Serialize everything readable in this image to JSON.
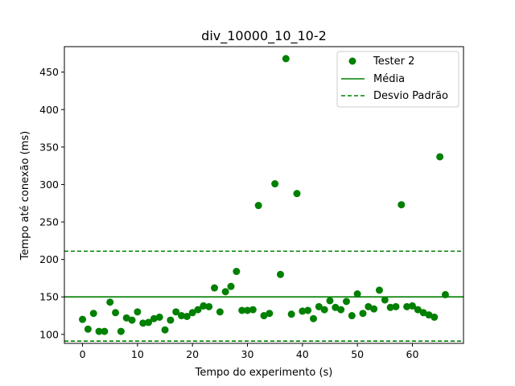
{
  "chart_data": {
    "type": "scatter",
    "title": "div_10000_10_10-2",
    "xlabel": "Tempo do experimento (s)",
    "ylabel": "Tempo até conexão (ms)",
    "xlim": [
      -3.3,
      69.3
    ],
    "ylim": [
      88,
      484
    ],
    "xticks": [
      0,
      10,
      20,
      30,
      40,
      50,
      60
    ],
    "yticks": [
      100,
      150,
      200,
      250,
      300,
      350,
      400,
      450
    ],
    "grid": false,
    "legend_position": "upper right",
    "colors": {
      "series": "#008000"
    },
    "series": [
      {
        "name": "Tester 2",
        "x": [
          0,
          1,
          2,
          3,
          4,
          5,
          6,
          7,
          8,
          9,
          10,
          11,
          12,
          13,
          14,
          15,
          16,
          17,
          18,
          19,
          20,
          21,
          22,
          23,
          24,
          25,
          26,
          27,
          28,
          29,
          30,
          31,
          32,
          33,
          34,
          35,
          36,
          37,
          38,
          39,
          40,
          41,
          42,
          43,
          44,
          45,
          46,
          47,
          48,
          49,
          50,
          51,
          52,
          53,
          54,
          55,
          56,
          57,
          58,
          59,
          60,
          61,
          62,
          63,
          64,
          65,
          66
        ],
        "y": [
          120,
          107,
          128,
          104,
          104,
          143,
          129,
          104,
          122,
          119,
          130,
          115,
          116,
          121,
          123,
          106,
          119,
          130,
          125,
          124,
          129,
          133,
          138,
          137,
          162,
          130,
          157,
          164,
          184,
          132,
          132,
          133,
          272,
          125,
          128,
          301,
          180,
          468,
          127,
          288,
          131,
          132,
          121,
          137,
          133,
          145,
          136,
          133,
          144,
          125,
          154,
          128,
          137,
          134,
          159,
          146,
          136,
          137,
          273,
          137,
          138,
          133,
          129,
          126,
          123,
          337,
          153
        ]
      }
    ],
    "lines": [
      {
        "name": "Média",
        "y": 150,
        "style": "solid"
      },
      {
        "name": "Desvio Padrão",
        "y": [
          211,
          91
        ],
        "style": "dashed"
      }
    ]
  }
}
